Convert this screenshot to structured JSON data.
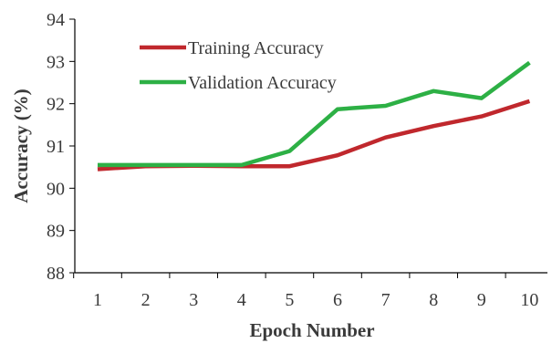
{
  "chart_data": {
    "type": "line",
    "title": "",
    "xlabel": "Epoch Number",
    "ylabel": "Accuracy (%)",
    "x": [
      1,
      2,
      3,
      4,
      5,
      6,
      7,
      8,
      9,
      10
    ],
    "x_tick_labels": [
      "1",
      "2",
      "3",
      "4",
      "5",
      "6",
      "7",
      "8",
      "9",
      "10"
    ],
    "ylim": [
      88,
      94
    ],
    "y_ticks": [
      88,
      89,
      90,
      91,
      92,
      93,
      94
    ],
    "y_tick_labels": [
      "88",
      "89",
      "90",
      "91",
      "92",
      "93",
      "94"
    ],
    "grid": false,
    "legend_position": "top-left",
    "series": [
      {
        "name": "Training Accuracy",
        "color": "#c0282d",
        "values": [
          90.45,
          90.52,
          90.53,
          90.52,
          90.52,
          90.78,
          91.2,
          91.47,
          91.7,
          92.06
        ]
      },
      {
        "name": "Validation Accuracy",
        "color": "#2db045",
        "values": [
          90.55,
          90.55,
          90.55,
          90.55,
          90.88,
          91.87,
          91.95,
          92.3,
          92.13,
          92.97
        ]
      }
    ]
  }
}
